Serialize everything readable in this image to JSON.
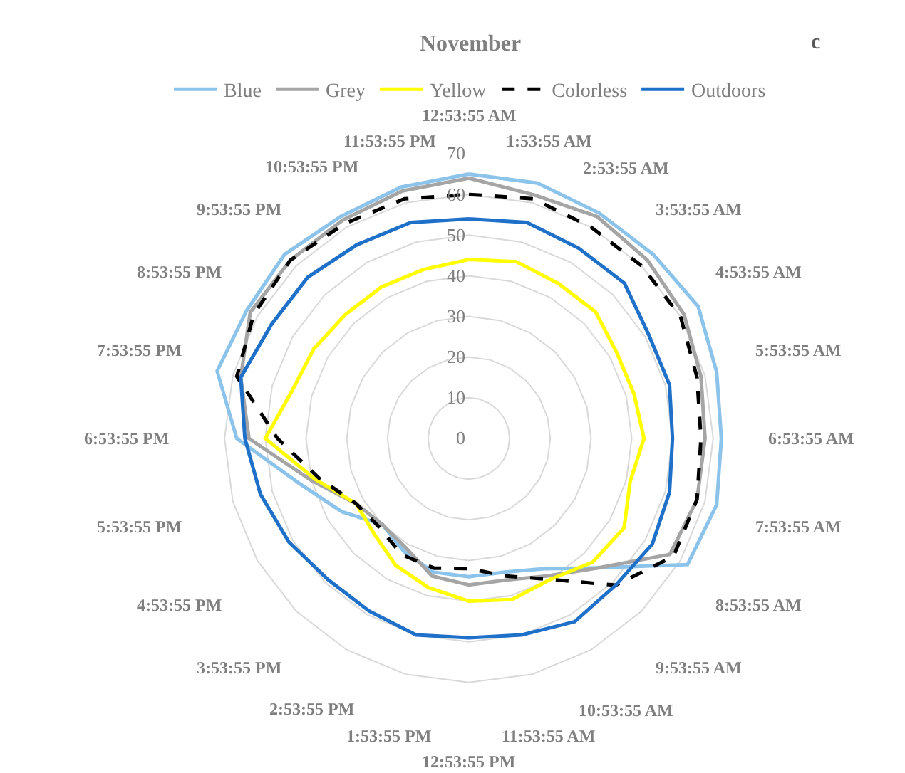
{
  "chart_data": {
    "type": "radar",
    "title": "November",
    "annotations": [
      "c"
    ],
    "categories": [
      "12:53:55 AM",
      "1:53:55 AM",
      "2:53:55 AM",
      "3:53:55 AM",
      "4:53:55 AM",
      "5:53:55 AM",
      "6:53:55 AM",
      "7:53:55 AM",
      "8:53:55 AM",
      "9:53:55 AM",
      "10:53:55 AM",
      "11:53:55 AM",
      "12:53:55 PM",
      "1:53:55 PM",
      "2:53:55 PM",
      "3:53:55 PM",
      "4:53:55 PM",
      "5:53:55 PM",
      "6:53:55 PM",
      "7:53:55 PM",
      "8:53:55 PM",
      "9:53:55 PM",
      "10:53:55 PM",
      "11:53:55 PM"
    ],
    "series": [
      {
        "name": "Blue",
        "color": "#8cc3ea",
        "values": [
          65,
          65,
          64,
          64,
          65,
          63,
          62,
          63,
          62,
          45,
          37,
          34,
          34,
          34,
          32,
          30,
          36,
          43,
          57,
          64,
          63,
          64,
          63,
          64
        ]
      },
      {
        "name": "Grey",
        "color": "#a5a5a5",
        "values": [
          64,
          62,
          63,
          62,
          61,
          59,
          58,
          58,
          57,
          45,
          39,
          36,
          36,
          35,
          31,
          30,
          32,
          40,
          54,
          58,
          62,
          62,
          62,
          63
        ]
      },
      {
        "name": "Yellow",
        "color": "#ffff00",
        "values": [
          44,
          45,
          44,
          44,
          42,
          42,
          43,
          41,
          44,
          43,
          40,
          41,
          40,
          38,
          36,
          33,
          32,
          39,
          50,
          45,
          44,
          43,
          43,
          43
        ]
      },
      {
        "name": "Colorless",
        "color": "#000000",
        "line_style": "dashed",
        "values": [
          60,
          61,
          60,
          60,
          60,
          58,
          57,
          58,
          58,
          51,
          40,
          35,
          32,
          33,
          33,
          31,
          32,
          38,
          47,
          59,
          61,
          62,
          61,
          61
        ]
      },
      {
        "name": "Outdoors",
        "color": "#1f70c8",
        "values": [
          54,
          55,
          54,
          54,
          51,
          51,
          50,
          51,
          52,
          51,
          52,
          50,
          49,
          50,
          49,
          49,
          51,
          53,
          55,
          58,
          56,
          56,
          55,
          55
        ]
      }
    ],
    "ylim": [
      0,
      70
    ],
    "yticks": [
      0,
      10,
      20,
      30,
      40,
      50,
      60,
      70
    ],
    "grid": "y",
    "legend": "top",
    "marker": "none"
  }
}
